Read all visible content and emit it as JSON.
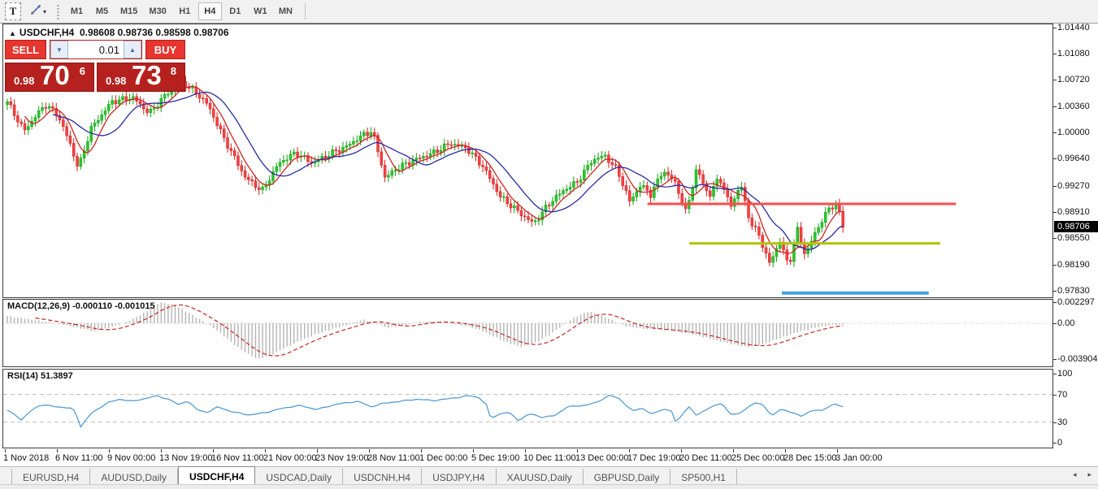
{
  "toolbar": {
    "text_tool_label": "T",
    "timeframes": [
      "M1",
      "M5",
      "M15",
      "M30",
      "H1",
      "H4",
      "D1",
      "W1",
      "MN"
    ],
    "active_timeframe": "H4"
  },
  "chart": {
    "title": {
      "marker": "▲",
      "symbol": "USDCHF,H4",
      "open": "0.98608",
      "high": "0.98736",
      "low": "0.98598",
      "close": "0.98706"
    },
    "trade_panel": {
      "sell_label": "SELL",
      "buy_label": "BUY",
      "volume": "0.01",
      "spin_down": "▼",
      "spin_up": "▲",
      "sell_price": {
        "prefix": "0.98",
        "big": "70",
        "sup": "6"
      },
      "buy_price": {
        "prefix": "0.98",
        "big": "73",
        "sup": "8"
      }
    },
    "colors": {
      "candle_up": "#2dc62d",
      "candle_up_edge": "#12a012",
      "candle_down": "#f54242",
      "candle_down_edge": "#d21f1f",
      "ma_fast": "#cc2424",
      "ma_slow": "#2a2aa2",
      "hline_red": "#f64f4f",
      "hline_olive": "#b3c300",
      "hline_blue": "#46a0e2",
      "macd_bar": "#b4b4b4",
      "macd_signal": "#cc2222",
      "rsi_line": "#4796d2",
      "level_dash": "#c0c0c0",
      "price_tag_bg": "#000000",
      "price_tag_text": "#ffffff"
    }
  },
  "indicators": {
    "macd_label": "MACD(12,26,9) -0.000110 -0.001015",
    "rsi_label": "RSI(14) 51.3897"
  },
  "tabs": {
    "items": [
      {
        "label": "EURUSD,H4"
      },
      {
        "label": "AUDUSD,Daily"
      },
      {
        "label": "USDCHF,H4"
      },
      {
        "label": "USDCAD,Daily"
      },
      {
        "label": "USDCNH,H4"
      },
      {
        "label": "USDJPY,H4"
      },
      {
        "label": "XAUUSD,Daily"
      },
      {
        "label": "GBPUSD,Daily"
      },
      {
        "label": "SP500,H1"
      }
    ],
    "active_index": 2,
    "scroll_left": "◂",
    "scroll_right": "▸"
  },
  "chart_data": [
    {
      "type": "candlestick",
      "symbol": "USDCHF",
      "timeframe": "H4",
      "ohlc_current": {
        "open": 0.98608,
        "high": 0.98736,
        "low": 0.98598,
        "close": 0.98706
      },
      "ylim": [
        0.9783,
        1.0144
      ],
      "y_ticks": [
        "1.01440",
        "1.01080",
        "1.00720",
        "1.00360",
        "1.00000",
        "0.99640",
        "0.99270",
        "0.98910",
        "0.98550",
        "0.98190",
        "0.97830"
      ],
      "current_price": "0.98706",
      "x_labels": [
        "1 Nov 2018",
        "6 Nov 11:00",
        "9 Nov 00:00",
        "13 Nov 19:00",
        "16 Nov 11:00",
        "21 Nov 00:00",
        "23 Nov 19:00",
        "28 Nov 11:00",
        "1 Dec 00:00",
        "5 Dec 19:00",
        "10 Dec 11:00",
        "13 Dec 00:00",
        "17 Dec 19:00",
        "20 Dec 11:00",
        "25 Dec 00:00",
        "28 Dec 15:00",
        "3 Jan 00:00"
      ],
      "n_candles": 240,
      "price_path": [
        [
          0,
          1.0042
        ],
        [
          0.02,
          1.0002
        ],
        [
          0.045,
          1.0038
        ],
        [
          0.06,
          1.0025
        ],
        [
          0.075,
          0.9985
        ],
        [
          0.085,
          0.995
        ],
        [
          0.1,
          1.0005
        ],
        [
          0.125,
          1.0042
        ],
        [
          0.15,
          1.0048
        ],
        [
          0.17,
          1.0026
        ],
        [
          0.19,
          1.0052
        ],
        [
          0.21,
          1.0068
        ],
        [
          0.225,
          1.0055
        ],
        [
          0.24,
          1.0038
        ],
        [
          0.26,
          0.999
        ],
        [
          0.285,
          0.9938
        ],
        [
          0.305,
          0.992
        ],
        [
          0.325,
          0.9958
        ],
        [
          0.345,
          0.9972
        ],
        [
          0.365,
          0.9958
        ],
        [
          0.385,
          0.997
        ],
        [
          0.405,
          0.998
        ],
        [
          0.425,
          0.9996
        ],
        [
          0.437,
          1.0002
        ],
        [
          0.452,
          0.9938
        ],
        [
          0.468,
          0.9952
        ],
        [
          0.487,
          0.9962
        ],
        [
          0.51,
          0.9972
        ],
        [
          0.53,
          0.9985
        ],
        [
          0.55,
          0.9978
        ],
        [
          0.57,
          0.9952
        ],
        [
          0.59,
          0.9912
        ],
        [
          0.615,
          0.9888
        ],
        [
          0.63,
          0.9875
        ],
        [
          0.648,
          0.9902
        ],
        [
          0.665,
          0.992
        ],
        [
          0.682,
          0.9932
        ],
        [
          0.7,
          0.9962
        ],
        [
          0.715,
          0.9968
        ],
        [
          0.73,
          0.9948
        ],
        [
          0.745,
          0.9905
        ],
        [
          0.758,
          0.9928
        ],
        [
          0.77,
          0.9915
        ],
        [
          0.785,
          0.9948
        ],
        [
          0.8,
          0.993
        ],
        [
          0.812,
          0.989
        ],
        [
          0.825,
          0.995
        ],
        [
          0.84,
          0.9912
        ],
        [
          0.852,
          0.994
        ],
        [
          0.865,
          0.9898
        ],
        [
          0.878,
          0.9928
        ],
        [
          0.888,
          0.988
        ],
        [
          0.9,
          0.9858
        ],
        [
          0.912,
          0.982
        ],
        [
          0.925,
          0.9852
        ],
        [
          0.935,
          0.9815
        ],
        [
          0.945,
          0.9868
        ],
        [
          0.955,
          0.9832
        ],
        [
          0.965,
          0.9858
        ],
        [
          0.975,
          0.988
        ],
        [
          0.985,
          0.9898
        ],
        [
          0.993,
          0.9902
        ],
        [
          1,
          0.9871
        ]
      ],
      "overlays": [
        {
          "name": "MA fast",
          "color_key": "ma_fast"
        },
        {
          "name": "MA slow",
          "color_key": "ma_slow"
        }
      ],
      "hlines": [
        {
          "price": 0.9902,
          "x1f": 0.614,
          "x2f": 0.908,
          "color_key": "hline_red",
          "width": 3
        },
        {
          "price": 0.9848,
          "x1f": 0.654,
          "x2f": 0.893,
          "color_key": "hline_olive",
          "width": 3
        },
        {
          "price": 0.978,
          "x1f": 0.742,
          "x2f": 0.882,
          "color_key": "hline_blue",
          "width": 4
        }
      ]
    },
    {
      "type": "bar",
      "name": "MACD",
      "params": "12,26,9",
      "current_macd": -0.00011,
      "current_signal": -0.001015,
      "ylim": [
        -0.003904,
        0.002297
      ],
      "y_ticks": [
        [
          "0.002297",
          0.002297
        ],
        [
          "0.00",
          0
        ],
        [
          "-0.003904",
          -0.003904
        ]
      ],
      "path": [
        [
          0,
          0.0008
        ],
        [
          0.03,
          0.0004
        ],
        [
          0.05,
          0.0001
        ],
        [
          0.07,
          -0.0002
        ],
        [
          0.09,
          -0.0006
        ],
        [
          0.105,
          -0.0009
        ],
        [
          0.125,
          -0.0004
        ],
        [
          0.145,
          0.0002
        ],
        [
          0.165,
          0.0012
        ],
        [
          0.182,
          0.0023
        ],
        [
          0.2,
          0.002
        ],
        [
          0.22,
          0.001
        ],
        [
          0.235,
          0.0002
        ],
        [
          0.25,
          -0.0007
        ],
        [
          0.27,
          -0.0022
        ],
        [
          0.285,
          -0.0032
        ],
        [
          0.3,
          -0.0039
        ],
        [
          0.315,
          -0.0035
        ],
        [
          0.33,
          -0.0028
        ],
        [
          0.35,
          -0.0019
        ],
        [
          0.37,
          -0.0012
        ],
        [
          0.39,
          -0.0006
        ],
        [
          0.41,
          -0.0001
        ],
        [
          0.425,
          0.0004
        ],
        [
          0.44,
          0.0001
        ],
        [
          0.455,
          -0.0005
        ],
        [
          0.47,
          -0.0003
        ],
        [
          0.49,
          0.0001
        ],
        [
          0.51,
          0.0002
        ],
        [
          0.53,
          0
        ],
        [
          0.55,
          -0.0003
        ],
        [
          0.57,
          -0.0009
        ],
        [
          0.59,
          -0.0018
        ],
        [
          0.614,
          -0.0026
        ],
        [
          0.635,
          -0.002
        ],
        [
          0.65,
          -0.0012
        ],
        [
          0.663,
          -0.0003
        ],
        [
          0.678,
          0.0006
        ],
        [
          0.695,
          0.0013
        ],
        [
          0.71,
          0.0009
        ],
        [
          0.725,
          0.0003
        ],
        [
          0.74,
          -0.0003
        ],
        [
          0.76,
          -0.0006
        ],
        [
          0.78,
          -0.0007
        ],
        [
          0.8,
          -0.0009
        ],
        [
          0.82,
          -0.0012
        ],
        [
          0.845,
          -0.0018
        ],
        [
          0.868,
          -0.0023
        ],
        [
          0.886,
          -0.0026
        ],
        [
          0.905,
          -0.0023
        ],
        [
          0.925,
          -0.0016
        ],
        [
          0.945,
          -0.001
        ],
        [
          0.965,
          -0.0005
        ],
        [
          0.985,
          -0.0002
        ],
        [
          1,
          -0.00011
        ]
      ]
    },
    {
      "type": "line",
      "name": "RSI",
      "params": "14",
      "current": 51.3897,
      "ylim": [
        0,
        100
      ],
      "y_ticks": [
        [
          "100",
          100
        ],
        [
          "70",
          70
        ],
        [
          "30",
          30
        ],
        [
          "0",
          0
        ]
      ],
      "levels": [
        70,
        30
      ],
      "path": [
        [
          0,
          47
        ],
        [
          0.01,
          40
        ],
        [
          0.017,
          33
        ],
        [
          0.03,
          48
        ],
        [
          0.04,
          55
        ],
        [
          0.06,
          52
        ],
        [
          0.075,
          50
        ],
        [
          0.082,
          45
        ],
        [
          0.087,
          22
        ],
        [
          0.1,
          42
        ],
        [
          0.12,
          58
        ],
        [
          0.135,
          63
        ],
        [
          0.15,
          60
        ],
        [
          0.165,
          64
        ],
        [
          0.179,
          68
        ],
        [
          0.195,
          62
        ],
        [
          0.205,
          55
        ],
        [
          0.215,
          61
        ],
        [
          0.228,
          47
        ],
        [
          0.24,
          44
        ],
        [
          0.252,
          52
        ],
        [
          0.268,
          45
        ],
        [
          0.29,
          40
        ],
        [
          0.31,
          44
        ],
        [
          0.33,
          50
        ],
        [
          0.35,
          54
        ],
        [
          0.37,
          48
        ],
        [
          0.395,
          56
        ],
        [
          0.42,
          60
        ],
        [
          0.435,
          52
        ],
        [
          0.45,
          57
        ],
        [
          0.47,
          60
        ],
        [
          0.49,
          63
        ],
        [
          0.51,
          61
        ],
        [
          0.53,
          64
        ],
        [
          0.553,
          68
        ],
        [
          0.565,
          65
        ],
        [
          0.575,
          53
        ],
        [
          0.578,
          35
        ],
        [
          0.59,
          42
        ],
        [
          0.6,
          44
        ],
        [
          0.612,
          32
        ],
        [
          0.625,
          42
        ],
        [
          0.64,
          37
        ],
        [
          0.655,
          39
        ],
        [
          0.67,
          52
        ],
        [
          0.69,
          54
        ],
        [
          0.705,
          58
        ],
        [
          0.721,
          69
        ],
        [
          0.733,
          63
        ],
        [
          0.748,
          46
        ],
        [
          0.76,
          50
        ],
        [
          0.772,
          41
        ],
        [
          0.785,
          49
        ],
        [
          0.795,
          46
        ],
        [
          0.8,
          28
        ],
        [
          0.815,
          53
        ],
        [
          0.825,
          39
        ],
        [
          0.84,
          51
        ],
        [
          0.855,
          57
        ],
        [
          0.865,
          42
        ],
        [
          0.875,
          41
        ],
        [
          0.888,
          53
        ],
        [
          0.895,
          58
        ],
        [
          0.905,
          54
        ],
        [
          0.915,
          39
        ],
        [
          0.925,
          48
        ],
        [
          0.94,
          44
        ],
        [
          0.95,
          38
        ],
        [
          0.965,
          48
        ],
        [
          0.975,
          46
        ],
        [
          0.98,
          50
        ],
        [
          0.99,
          57
        ],
        [
          1,
          51.39
        ]
      ]
    }
  ]
}
